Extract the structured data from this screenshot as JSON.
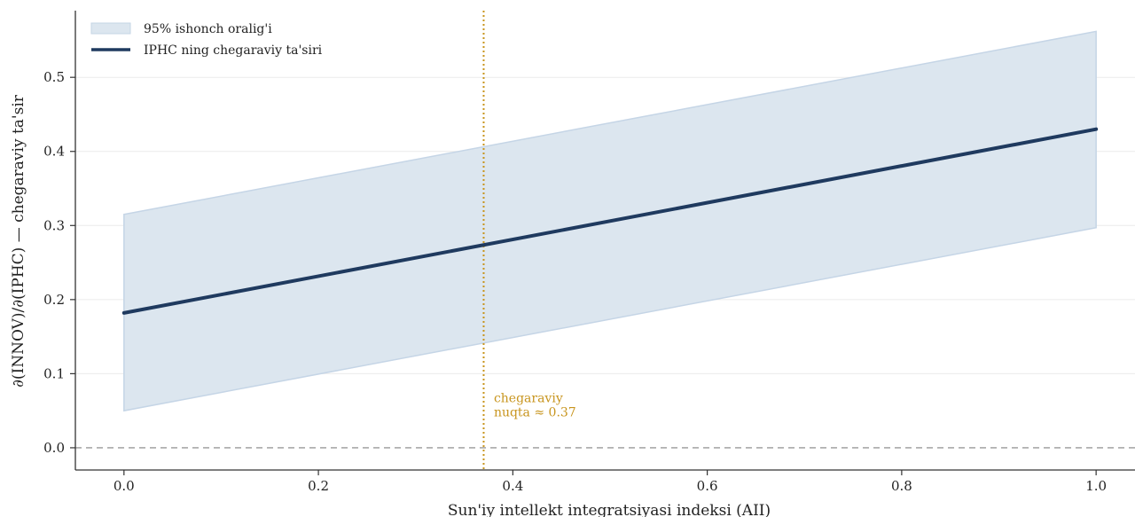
{
  "chart_data": {
    "type": "line",
    "xlabel": "Sun'iy intellekt integratsiyasi indeksi (AII)",
    "ylabel": "∂(INNOV)/∂(IPHC) — chegaraviy ta'sir",
    "xlim": [
      -0.05,
      1.04
    ],
    "ylim": [
      -0.03,
      0.59
    ],
    "x_ticks": [
      0.0,
      0.2,
      0.4,
      0.6,
      0.8,
      1.0
    ],
    "x_tick_labels": [
      "0.0",
      "0.2",
      "0.4",
      "0.6",
      "0.8",
      "1.0"
    ],
    "y_ticks": [
      0.0,
      0.1,
      0.2,
      0.3,
      0.4,
      0.5
    ],
    "y_tick_labels": [
      "0.0",
      "0.1",
      "0.2",
      "0.3",
      "0.4",
      "0.5"
    ],
    "grid": "horizontal",
    "legend_position": "top-left",
    "series": [
      {
        "name": "IPHC ning chegaraviy ta'siri",
        "kind": "line",
        "color": "#1f3a5f",
        "x": [
          0.0,
          1.0
        ],
        "y": [
          0.182,
          0.43
        ]
      },
      {
        "name": "95% ishonch oralig'i",
        "kind": "band",
        "color": "#c5d5e6",
        "x": [
          0.0,
          1.0
        ],
        "lower": [
          0.05,
          0.297
        ],
        "upper": [
          0.315,
          0.562
        ]
      }
    ],
    "reference_lines": [
      {
        "axis": "y",
        "value": 0.0,
        "style": "dashed",
        "color": "#999999"
      },
      {
        "axis": "x",
        "value": 0.37,
        "style": "dotted",
        "color": "#c8951e"
      }
    ],
    "annotation": {
      "line1": "chegaraviy",
      "line2": "nuqta ≈ 0.37",
      "x": 0.375,
      "y": 0.045
    }
  }
}
